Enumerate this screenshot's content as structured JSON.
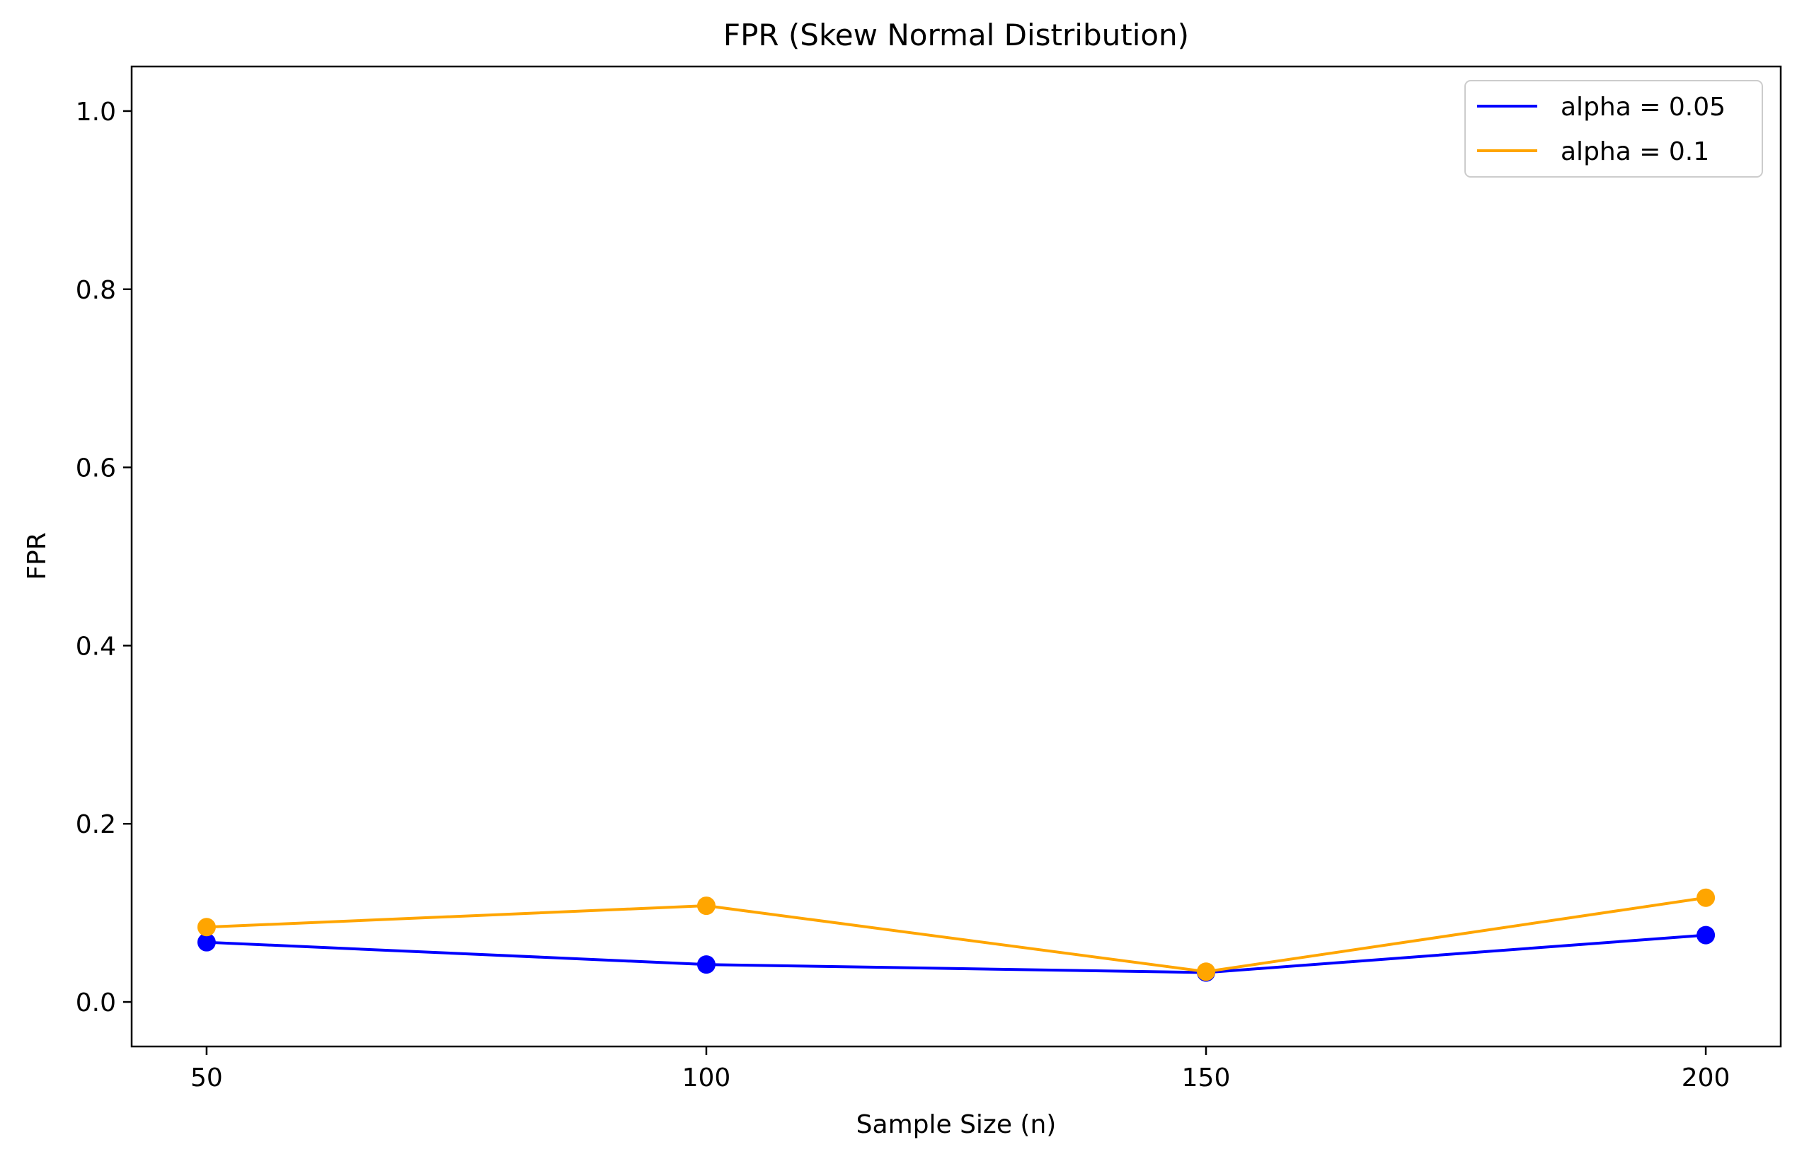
{
  "chart_data": {
    "type": "line",
    "title": "FPR (Skew Normal Distribution)",
    "xlabel": "Sample Size (n)",
    "ylabel": "FPR",
    "x": [
      50,
      100,
      150,
      200
    ],
    "xticks": [
      "50",
      "100",
      "150",
      "200"
    ],
    "xlim": [
      42.5,
      207.5
    ],
    "ylim": [
      -0.05,
      1.05
    ],
    "yticks": [
      "0.0",
      "0.2",
      "0.4",
      "0.6",
      "0.8",
      "1.0"
    ],
    "grid": false,
    "legend_position": "top-right",
    "series": [
      {
        "name": "alpha = 0.05",
        "color": "#0000ff",
        "values": [
          0.067,
          0.042,
          0.033,
          0.075
        ]
      },
      {
        "name": "alpha = 0.1",
        "color": "#ffa500",
        "values": [
          0.084,
          0.108,
          0.034,
          0.117
        ]
      }
    ]
  }
}
